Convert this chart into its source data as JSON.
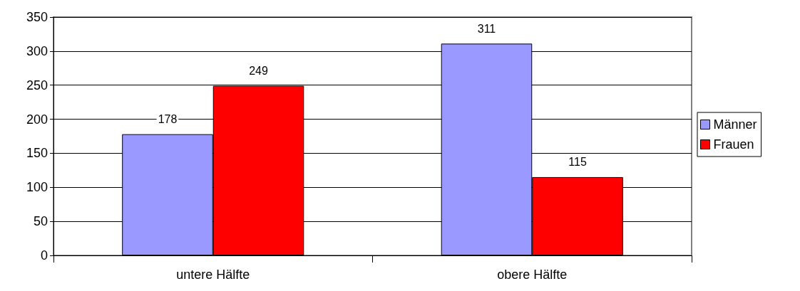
{
  "chart_data": {
    "type": "bar",
    "categories": [
      "untere Hälfte",
      "obere Hälfte"
    ],
    "series": [
      {
        "name": "Männer",
        "color": "#9999ff",
        "values": [
          178,
          311
        ]
      },
      {
        "name": "Frauen",
        "color": "#ff0000",
        "values": [
          249,
          115
        ]
      }
    ],
    "ylim": [
      0,
      350
    ],
    "yticks": [
      0,
      50,
      100,
      150,
      200,
      250,
      300,
      350
    ],
    "grid": "y",
    "legend": "right",
    "data_labels": true
  }
}
